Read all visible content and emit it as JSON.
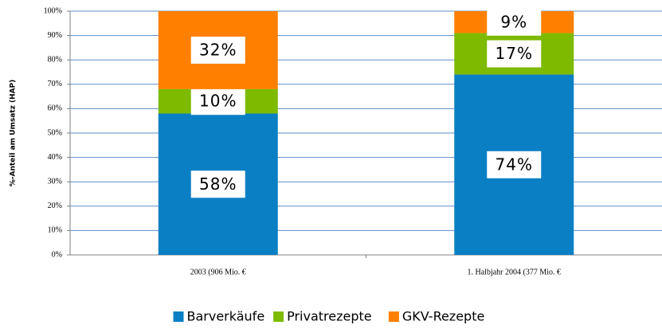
{
  "chart_data": {
    "type": "stacked_bar",
    "y_label": "%-Anteil am Umsatz (HAP)",
    "categories": [
      "2003 (906 Mio. €",
      "1. Halbjahr 2004 (377 Mio. €"
    ],
    "series": [
      {
        "name": "Barverkäufe",
        "color": "#0a7fc4",
        "values": [
          58,
          74
        ],
        "value_labels": [
          "58%",
          "74%"
        ]
      },
      {
        "name": "Privatrezepte",
        "color": "#7dba00",
        "values": [
          10,
          17
        ],
        "value_labels": [
          "10%",
          "17%"
        ]
      },
      {
        "name": "GKV-Rezepte",
        "color": "#ff8000",
        "values": [
          32,
          9
        ],
        "value_labels": [
          "32%",
          "9%"
        ]
      }
    ],
    "ylim": [
      0,
      100
    ],
    "yticks": [
      {
        "value": 0,
        "label": "0%"
      },
      {
        "value": 10,
        "label": "10%"
      },
      {
        "value": 20,
        "label": "20%"
      },
      {
        "value": 30,
        "label": "30%"
      },
      {
        "value": 40,
        "label": "40%"
      },
      {
        "value": 50,
        "label": "50%"
      },
      {
        "value": 60,
        "label": "60%"
      },
      {
        "value": 70,
        "label": "70%"
      },
      {
        "value": 80,
        "label": "80%"
      },
      {
        "value": 90,
        "label": "90%"
      },
      {
        "value": 100,
        "label": "100%"
      }
    ],
    "grid": true,
    "legend": "bottom"
  }
}
